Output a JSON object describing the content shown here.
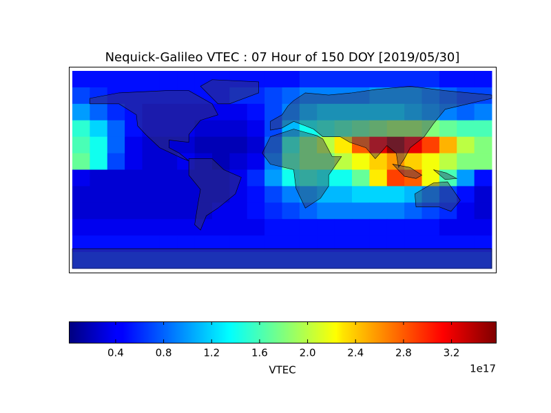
{
  "chart_data": {
    "type": "heatmap",
    "title": "Nequick-Galileo VTEC : 07 Hour of 150 DOY [2019/05/30]",
    "values": [
      [
        0.5,
        0.5,
        0.5,
        0.5,
        0.5,
        0.5,
        0.5,
        0.5,
        0.5,
        0.5,
        0.5,
        0.5,
        0.5,
        0.6,
        0.6,
        0.6,
        0.6,
        0.6,
        0.6,
        0.6,
        0.6,
        0.5,
        0.5,
        0.5
      ],
      [
        0.7,
        0.6,
        0.5,
        0.5,
        0.5,
        0.5,
        0.5,
        0.5,
        0.5,
        0.6,
        0.6,
        0.7,
        0.8,
        0.9,
        0.9,
        0.9,
        0.9,
        1.0,
        1.0,
        1.0,
        0.9,
        0.8,
        0.7,
        0.7
      ],
      [
        1.0,
        0.8,
        0.6,
        0.5,
        0.4,
        0.4,
        0.4,
        0.4,
        0.4,
        0.4,
        0.5,
        0.7,
        0.9,
        1.1,
        1.2,
        1.2,
        1.2,
        1.2,
        1.2,
        1.1,
        1.0,
        0.9,
        0.8,
        0.9
      ],
      [
        1.5,
        1.2,
        0.8,
        0.5,
        0.4,
        0.4,
        0.4,
        0.3,
        0.3,
        0.3,
        0.4,
        0.7,
        1.1,
        1.4,
        1.5,
        1.6,
        1.7,
        1.8,
        1.9,
        1.9,
        1.8,
        1.7,
        1.6,
        1.6
      ],
      [
        1.6,
        1.4,
        0.8,
        0.4,
        0.3,
        0.3,
        0.3,
        0.2,
        0.2,
        0.2,
        0.3,
        0.8,
        1.5,
        1.8,
        2.0,
        2.3,
        2.8,
        3.2,
        3.5,
        3.2,
        2.9,
        2.5,
        2.0,
        1.8
      ],
      [
        1.7,
        1.4,
        0.7,
        0.4,
        0.3,
        0.3,
        0.4,
        0.3,
        0.2,
        0.3,
        0.4,
        0.9,
        1.6,
        1.8,
        1.8,
        2.0,
        2.2,
        2.4,
        2.6,
        2.4,
        2.2,
        2.0,
        1.8,
        1.8
      ],
      [
        0.4,
        0.3,
        0.3,
        0.3,
        0.3,
        0.3,
        0.3,
        0.3,
        0.3,
        0.4,
        0.6,
        1.0,
        1.4,
        1.5,
        1.4,
        1.4,
        1.7,
        2.3,
        2.9,
        2.8,
        2.2,
        1.6,
        1.0,
        0.5
      ],
      [
        0.3,
        0.3,
        0.3,
        0.3,
        0.3,
        0.3,
        0.3,
        0.3,
        0.3,
        0.4,
        0.5,
        0.7,
        0.9,
        1.0,
        1.1,
        1.1,
        1.2,
        1.2,
        1.2,
        1.1,
        0.9,
        0.7,
        0.5,
        0.3
      ],
      [
        0.3,
        0.3,
        0.3,
        0.3,
        0.3,
        0.3,
        0.3,
        0.3,
        0.4,
        0.4,
        0.5,
        0.6,
        0.7,
        0.8,
        0.9,
        0.9,
        0.9,
        0.9,
        0.9,
        0.8,
        0.7,
        0.6,
        0.4,
        0.3
      ],
      [
        0.4,
        0.4,
        0.4,
        0.4,
        0.4,
        0.4,
        0.4,
        0.4,
        0.4,
        0.4,
        0.4,
        0.5,
        0.5,
        0.5,
        0.5,
        0.5,
        0.5,
        0.5,
        0.5,
        0.5,
        0.5,
        0.4,
        0.4,
        0.4
      ],
      [
        0.5,
        0.5,
        0.5,
        0.5,
        0.5,
        0.5,
        0.5,
        0.5,
        0.5,
        0.5,
        0.5,
        0.5,
        0.5,
        0.5,
        0.5,
        0.5,
        0.5,
        0.5,
        0.5,
        0.5,
        0.5,
        0.5,
        0.5,
        0.5
      ],
      [
        0.6,
        0.6,
        0.6,
        0.6,
        0.6,
        0.6,
        0.6,
        0.6,
        0.6,
        0.6,
        0.6,
        0.6,
        0.6,
        0.6,
        0.6,
        0.6,
        0.6,
        0.6,
        0.6,
        0.6,
        0.6,
        0.6,
        0.6,
        0.6
      ]
    ],
    "clim": [
      0.01,
      3.57
    ],
    "colorbar_ticks": [
      0.4,
      0.8,
      1.2,
      1.6,
      {
        "value": 2,
        "label": "2.0"
      },
      2.4,
      2.8,
      3.2
    ],
    "colorbar_label": "VTEC",
    "colorbar_offset": "1e17",
    "colormap": "jet"
  }
}
